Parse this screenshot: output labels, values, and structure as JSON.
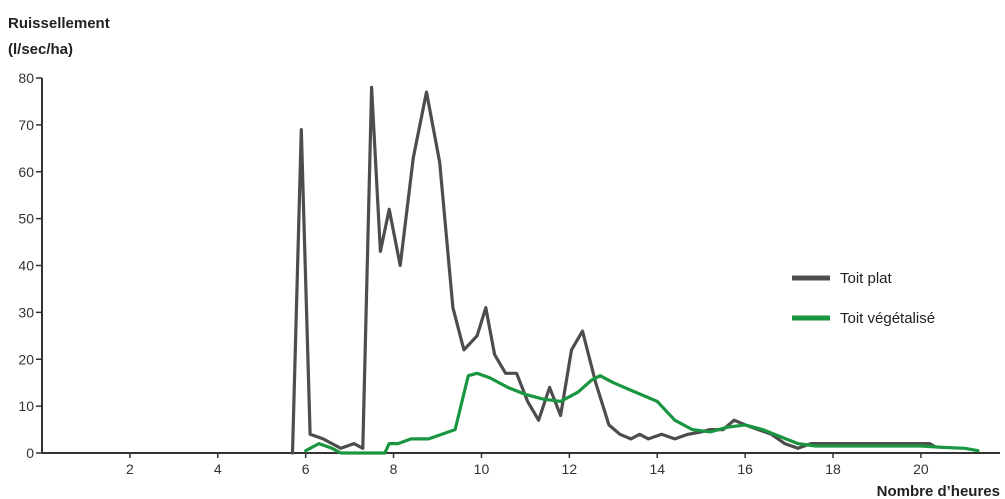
{
  "chart_data": {
    "type": "line",
    "title": "",
    "ylabel_lines": [
      "Ruissellement",
      "(l/sec/ha)"
    ],
    "xlabel": "Nombre d’heures",
    "xlim": [
      0,
      21.8
    ],
    "ylim": [
      0,
      80
    ],
    "x_ticks": [
      2,
      4,
      6,
      8,
      10,
      12,
      14,
      16,
      18,
      20
    ],
    "y_ticks": [
      0,
      10,
      20,
      30,
      40,
      50,
      60,
      70,
      80
    ],
    "grid": false,
    "legend_position": "right",
    "series": [
      {
        "name": "Toit plat",
        "color": "#4d4d4d",
        "points": [
          [
            5.7,
            0
          ],
          [
            5.9,
            69
          ],
          [
            6.1,
            4
          ],
          [
            6.4,
            3
          ],
          [
            6.6,
            2
          ],
          [
            6.8,
            1
          ],
          [
            7.1,
            2
          ],
          [
            7.3,
            1
          ],
          [
            7.5,
            78
          ],
          [
            7.7,
            43
          ],
          [
            7.9,
            52
          ],
          [
            8.15,
            40
          ],
          [
            8.45,
            63
          ],
          [
            8.75,
            77
          ],
          [
            9.05,
            62
          ],
          [
            9.35,
            31
          ],
          [
            9.6,
            22
          ],
          [
            9.9,
            25
          ],
          [
            10.1,
            31
          ],
          [
            10.3,
            21
          ],
          [
            10.55,
            17
          ],
          [
            10.8,
            17
          ],
          [
            11.05,
            11
          ],
          [
            11.3,
            7
          ],
          [
            11.55,
            14
          ],
          [
            11.8,
            8
          ],
          [
            12.05,
            22
          ],
          [
            12.3,
            26
          ],
          [
            12.6,
            15
          ],
          [
            12.9,
            6
          ],
          [
            13.15,
            4
          ],
          [
            13.4,
            3
          ],
          [
            13.6,
            4
          ],
          [
            13.8,
            3
          ],
          [
            14.1,
            4
          ],
          [
            14.4,
            3
          ],
          [
            14.7,
            4
          ],
          [
            15.0,
            4.5
          ],
          [
            15.2,
            5
          ],
          [
            15.5,
            5
          ],
          [
            15.75,
            7
          ],
          [
            16.0,
            6
          ],
          [
            16.3,
            5
          ],
          [
            16.6,
            4
          ],
          [
            16.9,
            2
          ],
          [
            17.2,
            1
          ],
          [
            17.5,
            2
          ],
          [
            18.0,
            2
          ],
          [
            18.5,
            2
          ],
          [
            19.0,
            2
          ],
          [
            19.5,
            2
          ],
          [
            20.0,
            2
          ],
          [
            20.2,
            2
          ],
          [
            20.3,
            1.5
          ]
        ]
      },
      {
        "name": "Toit végétalisé",
        "color": "#1a9641",
        "points": [
          [
            6.0,
            0.5
          ],
          [
            6.3,
            2
          ],
          [
            6.6,
            1
          ],
          [
            6.8,
            0
          ],
          [
            7.8,
            0
          ],
          [
            7.9,
            2
          ],
          [
            8.1,
            2
          ],
          [
            8.4,
            3
          ],
          [
            8.8,
            3
          ],
          [
            9.1,
            4
          ],
          [
            9.4,
            5
          ],
          [
            9.7,
            16.5
          ],
          [
            9.9,
            17
          ],
          [
            10.2,
            16
          ],
          [
            10.6,
            14
          ],
          [
            11.0,
            12.5
          ],
          [
            11.4,
            11.5
          ],
          [
            11.8,
            11
          ],
          [
            12.2,
            13
          ],
          [
            12.5,
            15.5
          ],
          [
            12.7,
            16.5
          ],
          [
            13.0,
            15
          ],
          [
            13.5,
            13
          ],
          [
            14.0,
            11
          ],
          [
            14.4,
            7
          ],
          [
            14.8,
            5
          ],
          [
            15.2,
            4.5
          ],
          [
            15.6,
            5.5
          ],
          [
            16.0,
            6
          ],
          [
            16.4,
            5
          ],
          [
            16.8,
            3.5
          ],
          [
            17.2,
            2
          ],
          [
            17.6,
            1.5
          ],
          [
            18.0,
            1.5
          ],
          [
            18.5,
            1.5
          ],
          [
            19.0,
            1.5
          ],
          [
            19.5,
            1.5
          ],
          [
            20.0,
            1.5
          ],
          [
            20.5,
            1.2
          ],
          [
            21.0,
            1
          ],
          [
            21.3,
            0.5
          ]
        ]
      }
    ]
  }
}
